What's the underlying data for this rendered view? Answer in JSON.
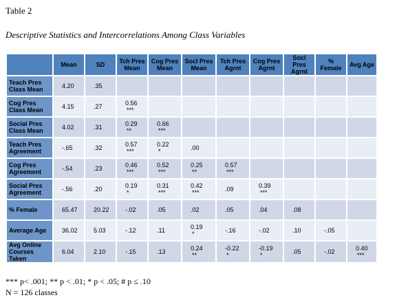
{
  "title": "Table 2",
  "subtitle": "Descriptive Statistics and Intercorrelations Among Class Variables",
  "table": {
    "columns": [
      "Mean",
      "SD",
      "Tch Pres Mean",
      "Cog Pres Mean",
      "Socl Pres Mean",
      "Tch Pres Agrnt",
      "Cog Pres Agrnt",
      "Socl Pres Agrnt",
      "% Female",
      "Avg Age"
    ],
    "rows": [
      {
        "label": "Teach Pres Class Mean",
        "cells": [
          "4.20",
          ".35",
          null,
          null,
          null,
          null,
          null,
          null,
          null,
          null
        ]
      },
      {
        "label": "Cog Pres Class Mean",
        "cells": [
          "4.15",
          ".27",
          [
            "0.56",
            "***"
          ],
          null,
          null,
          null,
          null,
          null,
          null,
          null
        ]
      },
      {
        "label": "Social Pres Class Mean",
        "cells": [
          "4.02",
          ".31",
          [
            "0.29",
            "**"
          ],
          [
            "0.66",
            "***"
          ],
          null,
          null,
          null,
          null,
          null,
          null
        ]
      },
      {
        "label": "Teach Pres Agreement",
        "cells": [
          "-.65",
          ".32",
          [
            "0.57",
            "***"
          ],
          [
            "0.22",
            "*"
          ],
          ".00",
          null,
          null,
          null,
          null,
          null
        ]
      },
      {
        "label": "Cog Pres Agreement",
        "cells": [
          "-.54",
          ".23",
          [
            "0.46",
            "***"
          ],
          [
            "0.52",
            "***"
          ],
          [
            "0.25",
            "**"
          ],
          [
            "0.57",
            "***"
          ],
          null,
          null,
          null,
          null
        ]
      },
      {
        "label": "Social Pres Agreement",
        "cells": [
          "-.56",
          ".20",
          [
            "0.19",
            "*"
          ],
          [
            "0.31",
            "***"
          ],
          [
            "0.42",
            "***"
          ],
          ".09",
          [
            "0.39",
            "***"
          ],
          null,
          null,
          null
        ]
      },
      {
        "label": "% Female",
        "cells": [
          "65.47",
          "20.22",
          "-.02",
          ".05",
          ".02",
          ".05",
          ".04",
          ".08",
          null,
          null
        ]
      },
      {
        "label": "Average Age",
        "cells": [
          "36.02",
          "5.03",
          "-.12",
          ".11",
          [
            "0.19",
            "*"
          ],
          "-.16",
          "-.02",
          ".10",
          "-.05",
          null
        ]
      },
      {
        "label": "Avg Online Courses Taken",
        "cells": [
          "6.04",
          "2.10",
          "-.15",
          ".13",
          [
            "0.24",
            "**"
          ],
          [
            "-0.22",
            "*"
          ],
          [
            "-0.19",
            "*"
          ],
          ".05",
          "-.02",
          [
            "0.40",
            "***"
          ]
        ]
      }
    ]
  },
  "footnote": "*** p< .001; ** p < .01; * p < .05; # p ≤ .10",
  "note": "N = 126 classes"
}
